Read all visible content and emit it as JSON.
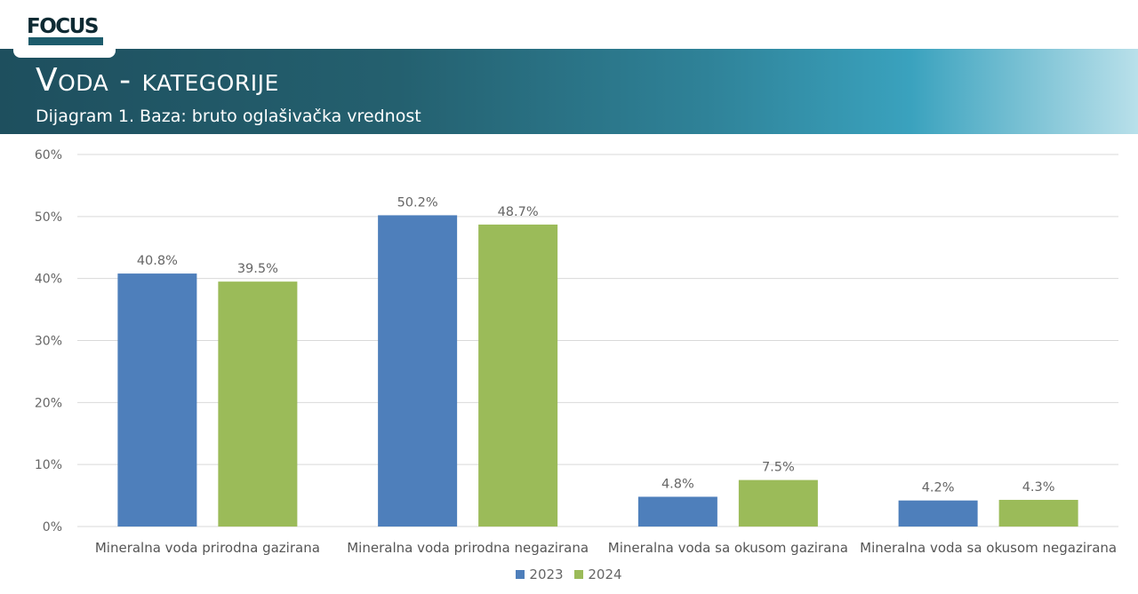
{
  "header": {
    "logo_text": "FOCUS",
    "title": "Voda - kategorije",
    "subtitle": "Dijagram 1. Baza: bruto oglašivačka vrednost"
  },
  "colors": {
    "series_2023": "#4e7fbb",
    "series_2024": "#9bbb59",
    "banner_dark": "#1e4f5e",
    "banner_light": "#3aa2be"
  },
  "chart_data": {
    "type": "bar",
    "categories": [
      "Mineralna voda prirodna gazirana",
      "Mineralna voda prirodna negazirana",
      "Mineralna voda sa okusom gazirana",
      "Mineralna voda sa okusom negazirana"
    ],
    "series": [
      {
        "name": "2023",
        "values": [
          40.8,
          50.2,
          4.8,
          4.2
        ],
        "labels": [
          "40.8%",
          "50.2%",
          "4.8%",
          "4.2%"
        ]
      },
      {
        "name": "2024",
        "values": [
          39.5,
          48.7,
          7.5,
          4.3
        ],
        "labels": [
          "39.5%",
          "48.7%",
          "7.5%",
          "4.3%"
        ]
      }
    ],
    "yticks": [
      "0%",
      "10%",
      "20%",
      "30%",
      "40%",
      "50%",
      "60%"
    ],
    "ylim": [
      0,
      60
    ],
    "grid": true,
    "legend": "bottom"
  }
}
